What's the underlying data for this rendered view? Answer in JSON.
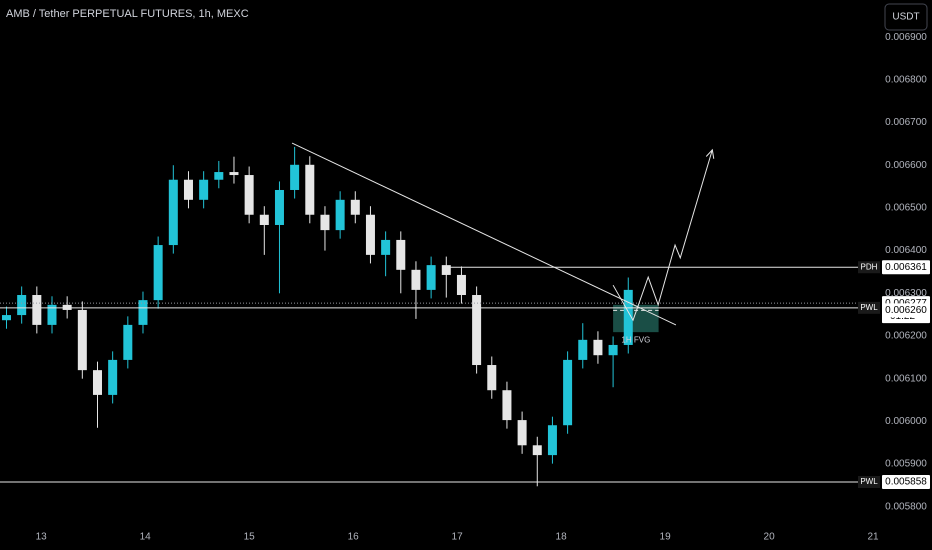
{
  "chart_data": {
    "type": "candlestick",
    "title": "AMB / Tether PERPETUAL FUTURES, 1h, MEXC",
    "currency": "USDT",
    "x": [
      -8,
      -4.5,
      -1,
      2.5,
      6,
      9.5,
      13,
      16.5,
      20,
      23.5,
      27,
      30.5,
      34,
      37.5,
      41,
      44.5,
      48,
      51.5,
      55,
      58.5,
      62,
      65.5,
      69,
      72.5,
      76,
      79.5,
      83,
      86.5,
      90,
      93.5,
      97,
      100.5,
      104,
      107.5,
      111,
      114.5,
      118,
      121.5,
      125,
      128.5,
      132,
      135.5
    ],
    "open": [
      0.006237,
      0.006249,
      0.006296,
      0.006226,
      0.006273,
      0.006261,
      0.00612,
      0.006062,
      0.006144,
      0.006226,
      0.006284,
      0.006413,
      0.006566,
      0.006519,
      0.006566,
      0.006584,
      0.006577,
      0.006484,
      0.00646,
      0.006542,
      0.006601,
      0.006484,
      0.006448,
      0.006519,
      0.006484,
      0.00639,
      0.006425,
      0.006355,
      0.006308,
      0.006366,
      0.006343,
      0.006296,
      0.006132,
      0.006073,
      0.006003,
      0.005944,
      0.005921,
      0.005991,
      0.006144,
      0.006191,
      0.006155,
      0.006179
    ],
    "high": [
      0.006269,
      0.006316,
      0.006316,
      0.006293,
      0.006293,
      0.006281,
      0.00614,
      0.006164,
      0.006246,
      0.006304,
      0.006433,
      0.0066,
      0.006586,
      0.006586,
      0.00661,
      0.00662,
      0.006597,
      0.006504,
      0.006562,
      0.006643,
      0.006621,
      0.006504,
      0.006539,
      0.006539,
      0.006504,
      0.006445,
      0.006445,
      0.006375,
      0.006386,
      0.006386,
      0.006363,
      0.006316,
      0.006152,
      0.006093,
      0.006023,
      0.005964,
      0.006011,
      0.006164,
      0.00623,
      0.006211,
      0.006199,
      0.006337
    ],
    "low": [
      0.006217,
      0.006229,
      0.006206,
      0.006206,
      0.006241,
      0.0061,
      0.005985,
      0.006042,
      0.006124,
      0.006206,
      0.006264,
      0.006393,
      0.006499,
      0.006499,
      0.006546,
      0.006557,
      0.006464,
      0.00639,
      0.0063,
      0.006522,
      0.006464,
      0.0064,
      0.006428,
      0.006464,
      0.00637,
      0.00634,
      0.0063,
      0.00624,
      0.006288,
      0.00629,
      0.006276,
      0.006112,
      0.006053,
      0.005983,
      0.005924,
      0.005848,
      0.005901,
      0.005971,
      0.006124,
      0.006135,
      0.00608,
      0.006159
    ],
    "close": [
      0.006249,
      0.006296,
      0.006226,
      0.006273,
      0.006261,
      0.00612,
      0.006062,
      0.006144,
      0.006226,
      0.006284,
      0.006413,
      0.006566,
      0.006519,
      0.006566,
      0.006584,
      0.006577,
      0.006484,
      0.00646,
      0.006542,
      0.006601,
      0.006484,
      0.006448,
      0.006519,
      0.006484,
      0.00639,
      0.006425,
      0.006355,
      0.006308,
      0.006366,
      0.006343,
      0.006296,
      0.006132,
      0.006073,
      0.006003,
      0.005944,
      0.005921,
      0.005991,
      0.006144,
      0.006191,
      0.006155,
      0.006179,
      0.006308
    ],
    "up_color": "#22c4d8",
    "down_color": "#e6e6e6",
    "xlim": [
      -9.5,
      193.6
    ],
    "xticks": [
      {
        "value": 0,
        "label": "13"
      },
      {
        "value": 24,
        "label": "14"
      },
      {
        "value": 48,
        "label": "15"
      },
      {
        "value": 72,
        "label": "16"
      },
      {
        "value": 96,
        "label": "17"
      },
      {
        "value": 120,
        "label": "18"
      },
      {
        "value": 144,
        "label": "19"
      },
      {
        "value": 168,
        "label": "20"
      },
      {
        "value": 192,
        "label": "21"
      }
    ],
    "ylim": [
      0.005769,
      0.006987
    ],
    "yticks": [
      {
        "value": 0.0058,
        "label": "0.005800"
      },
      {
        "value": 0.0059,
        "label": "0.005900"
      },
      {
        "value": 0.006,
        "label": "0.006000"
      },
      {
        "value": 0.0061,
        "label": "0.006100"
      },
      {
        "value": 0.0062,
        "label": "0.006200"
      },
      {
        "value": 0.0063,
        "label": "0.006300"
      },
      {
        "value": 0.0064,
        "label": "0.006400"
      },
      {
        "value": 0.0065,
        "label": "0.006500"
      },
      {
        "value": 0.0066,
        "label": "0.006600"
      },
      {
        "value": 0.0067,
        "label": "0.006700"
      },
      {
        "value": 0.0068,
        "label": "0.006800"
      },
      {
        "value": 0.0069,
        "label": "0.006900"
      }
    ],
    "grid": false,
    "levels": [
      {
        "name": "PDH",
        "value": 0.006361,
        "start": 93.7,
        "price_tag": true
      },
      {
        "name": "PWL",
        "value": 0.006266,
        "start": -9.5,
        "price_tag": false
      },
      {
        "name": "PWL",
        "value": 0.005858,
        "start": -9.5,
        "price_tag": true
      }
    ],
    "current_price": 0.006277,
    "countdown": "01:22",
    "fvg": {
      "label": "1H FVG",
      "x": [
        132,
        142.5
      ],
      "y": [
        0.006209,
        0.006273
      ],
      "mid": {
        "value": 0.00626,
        "label": "0.006260"
      }
    },
    "trendline": {
      "x": [
        57.9,
        146.5
      ],
      "y": [
        0.006652,
        0.006226
      ]
    },
    "projection": {
      "x": [
        132,
        136.6,
        140.1,
        142.4,
        146.3,
        147.5,
        154.9
      ],
      "y": [
        0.006319,
        0.006237,
        0.006338,
        0.006273,
        0.006413,
        0.006383,
        0.006636
      ]
    }
  }
}
